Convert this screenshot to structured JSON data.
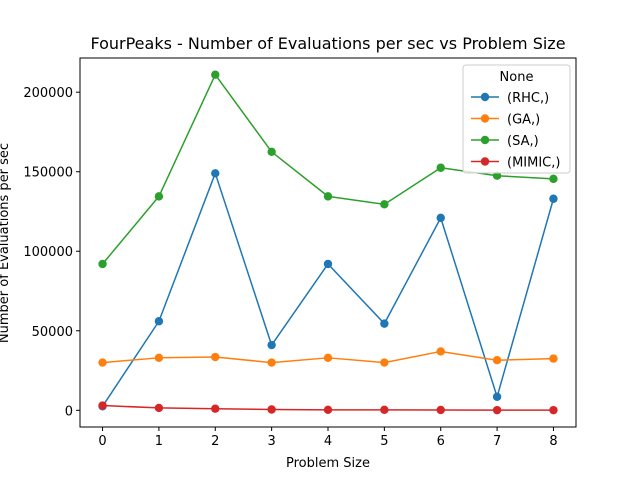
{
  "chart_data": {
    "type": "line",
    "title": "FourPeaks - Number of Evaluations per sec vs Problem Size",
    "xlabel": "Problem Size",
    "ylabel": "Number of Evaluations per sec",
    "x": [
      0,
      1,
      2,
      3,
      4,
      5,
      6,
      7,
      8
    ],
    "xlim": [
      -0.4,
      8.4
    ],
    "ylim": [
      -10500,
      221500
    ],
    "yticks": [
      0,
      50000,
      100000,
      150000,
      200000
    ],
    "grid": false,
    "legend": {
      "title": "None",
      "placement": "top-right"
    },
    "series": [
      {
        "name": "(RHC,)",
        "color": "#1f77b4",
        "marker": "circle",
        "values": [
          2500,
          56000,
          149000,
          41000,
          92000,
          54500,
          121000,
          8500,
          133000
        ]
      },
      {
        "name": "(GA,)",
        "color": "#ff7f0e",
        "marker": "circle",
        "values": [
          30000,
          33000,
          33500,
          30000,
          33000,
          30000,
          37000,
          31500,
          32500
        ]
      },
      {
        "name": "(SA,)",
        "color": "#2ca02c",
        "marker": "circle",
        "values": [
          92000,
          134500,
          211000,
          162500,
          134500,
          129500,
          152500,
          147500,
          145500
        ]
      },
      {
        "name": "(MIMIC,)",
        "color": "#d62728",
        "marker": "circle",
        "values": [
          3000,
          1500,
          1000,
          500,
          300,
          300,
          200,
          100,
          100
        ]
      }
    ]
  }
}
